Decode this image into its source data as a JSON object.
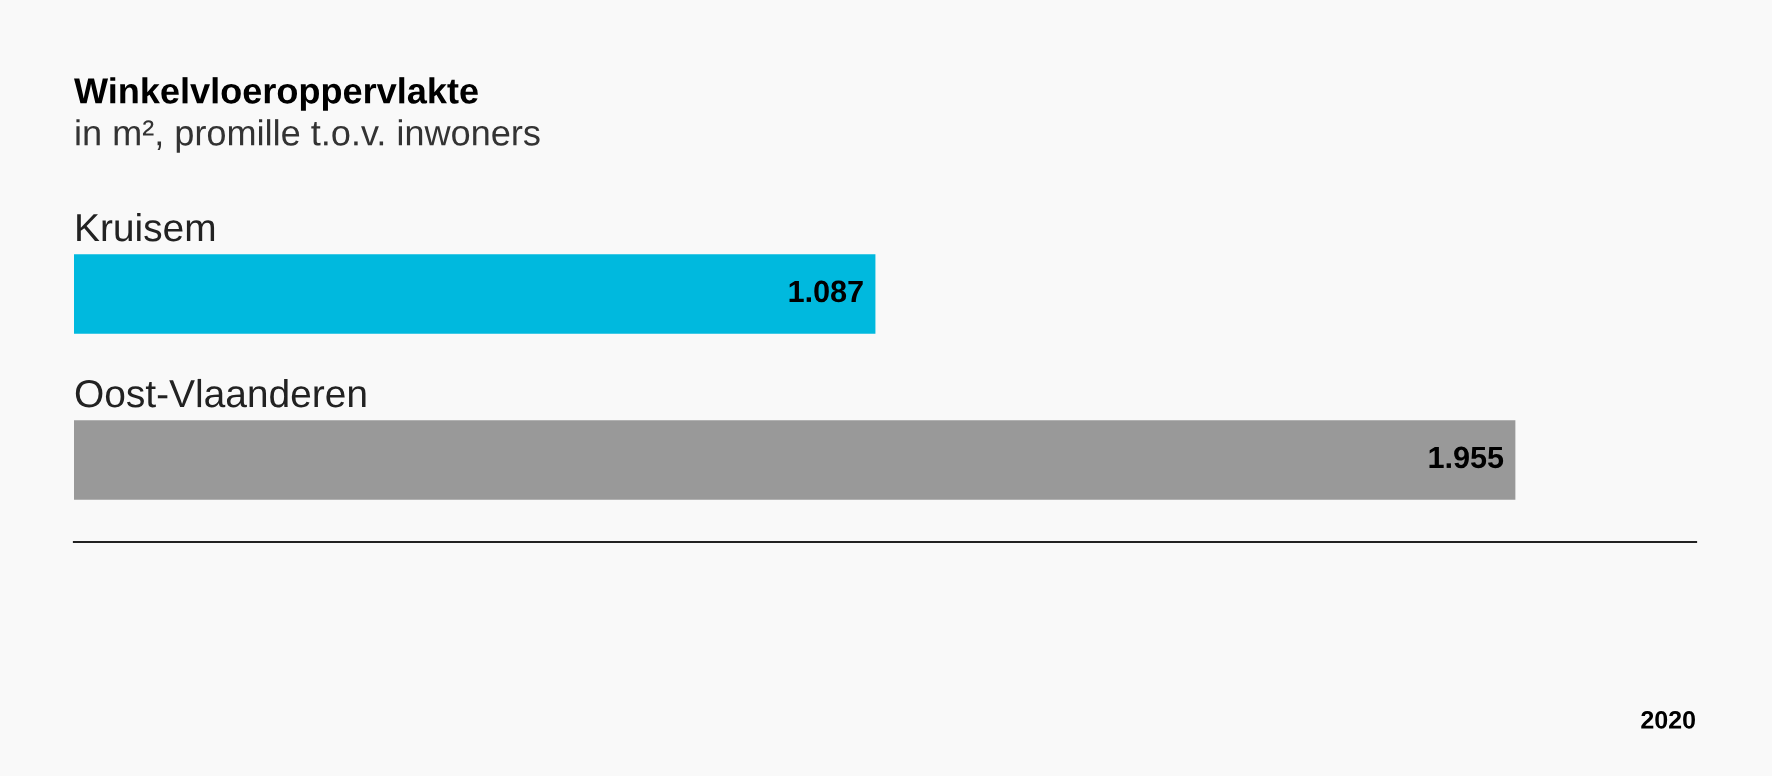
{
  "chart_data": {
    "type": "bar",
    "orientation": "horizontal",
    "title": "Winkelvloeroppervlakte",
    "subtitle": "in m², promille t.o.v. inwoners",
    "categories": [
      "Kruisem",
      "Oost-Vlaanderen"
    ],
    "values": [
      1087,
      1955
    ],
    "colors": [
      "#00b9de",
      "#999999"
    ],
    "value_labels": [
      "1.087",
      "1.955"
    ],
    "xlim": [
      0,
      2200
    ],
    "tick_labels": false,
    "legend": false,
    "annotations": [
      "2020"
    ]
  }
}
